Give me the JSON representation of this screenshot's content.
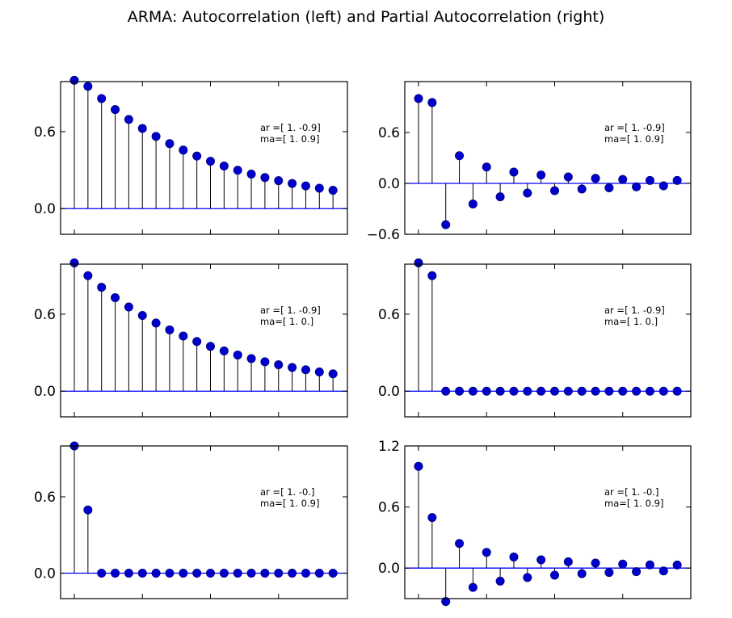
{
  "figure": {
    "title": "ARMA: Autocorrelation (left) and Partial Autocorrelation (right)",
    "colors": {
      "marker": "#0000cc",
      "zero_line": "#0000ff",
      "stem": "#000000",
      "frame": "#000000"
    }
  },
  "chart_data": [
    {
      "type": "scatter",
      "panel": "row1-left",
      "annotation": [
        "ar =[ 1.  -0.9]",
        "ma=[ 1.   0.9]"
      ],
      "ylim": [
        -0.2,
        0.99
      ],
      "yticks": [
        "0.6",
        "0.0"
      ],
      "x": [
        0,
        1,
        2,
        3,
        4,
        5,
        6,
        7,
        8,
        9,
        10,
        11,
        12,
        13,
        14,
        15,
        16,
        17,
        18,
        19
      ],
      "values": [
        1.0,
        0.953,
        0.858,
        0.772,
        0.695,
        0.625,
        0.563,
        0.507,
        0.456,
        0.41,
        0.369,
        0.332,
        0.299,
        0.269,
        0.242,
        0.218,
        0.196,
        0.177,
        0.159,
        0.143
      ]
    },
    {
      "type": "scatter",
      "panel": "row1-right",
      "annotation": [
        "ar =[ 1.  -0.9]",
        "ma=[ 1.   0.9]"
      ],
      "ylim": [
        -0.6,
        1.2
      ],
      "yticks": [
        "0.6",
        "0.0",
        "−0.6"
      ],
      "x": [
        0,
        1,
        2,
        3,
        4,
        5,
        6,
        7,
        8,
        9,
        10,
        11,
        12,
        13,
        14,
        15,
        16,
        17,
        18,
        19
      ],
      "values": [
        1.0,
        0.953,
        -0.487,
        0.326,
        -0.243,
        0.193,
        -0.158,
        0.133,
        -0.114,
        0.099,
        -0.086,
        0.076,
        -0.067,
        0.059,
        -0.052,
        0.046,
        -0.04,
        0.035,
        -0.029,
        0.035
      ]
    },
    {
      "type": "scatter",
      "panel": "row2-left",
      "annotation": [
        "ar =[ 1.  -0.9]",
        "ma=[ 1.  0.]"
      ],
      "ylim": [
        -0.2,
        0.99
      ],
      "yticks": [
        "0.6",
        "0.0"
      ],
      "x": [
        0,
        1,
        2,
        3,
        4,
        5,
        6,
        7,
        8,
        9,
        10,
        11,
        12,
        13,
        14,
        15,
        16,
        17,
        18,
        19
      ],
      "values": [
        1.0,
        0.9,
        0.81,
        0.729,
        0.656,
        0.59,
        0.531,
        0.478,
        0.43,
        0.387,
        0.349,
        0.314,
        0.282,
        0.254,
        0.229,
        0.206,
        0.185,
        0.167,
        0.15,
        0.135
      ]
    },
    {
      "type": "scatter",
      "panel": "row2-right",
      "annotation": [
        "ar =[ 1.  -0.9]",
        "ma=[ 1.  0.]"
      ],
      "ylim": [
        -0.2,
        0.99
      ],
      "yticks": [
        "0.6",
        "0.0"
      ],
      "x": [
        0,
        1,
        2,
        3,
        4,
        5,
        6,
        7,
        8,
        9,
        10,
        11,
        12,
        13,
        14,
        15,
        16,
        17,
        18,
        19
      ],
      "values": [
        1.0,
        0.9,
        0,
        0,
        0,
        0,
        0,
        0,
        0,
        0,
        0,
        0,
        0,
        0,
        0,
        0,
        0,
        0,
        0,
        0
      ]
    },
    {
      "type": "scatter",
      "panel": "row3-left",
      "annotation": [
        "ar =[ 1. -0.]",
        "ma=[ 1.   0.9]"
      ],
      "ylim": [
        -0.2,
        1.0
      ],
      "yticks": [
        "0.6",
        "0.0"
      ],
      "x": [
        0,
        1,
        2,
        3,
        4,
        5,
        6,
        7,
        8,
        9,
        10,
        11,
        12,
        13,
        14,
        15,
        16,
        17,
        18,
        19
      ],
      "values": [
        1.0,
        0.497,
        0,
        0,
        0,
        0,
        0,
        0,
        0,
        0,
        0,
        0,
        0,
        0,
        0,
        0,
        0,
        0,
        0,
        0
      ]
    },
    {
      "type": "scatter",
      "panel": "row3-right",
      "annotation": [
        "ar =[ 1. -0.]",
        "ma=[ 1.   0.9]"
      ],
      "ylim": [
        -0.3,
        1.2
      ],
      "yticks": [
        "1.2",
        "0.6",
        "0.0"
      ],
      "x": [
        0,
        1,
        2,
        3,
        4,
        5,
        6,
        7,
        8,
        9,
        10,
        11,
        12,
        13,
        14,
        15,
        16,
        17,
        18,
        19
      ],
      "values": [
        1.0,
        0.497,
        -0.329,
        0.242,
        -0.19,
        0.154,
        -0.128,
        0.109,
        -0.093,
        0.081,
        -0.07,
        0.062,
        -0.055,
        0.049,
        -0.043,
        0.039,
        -0.035,
        0.031,
        -0.028,
        0.03
      ]
    }
  ]
}
